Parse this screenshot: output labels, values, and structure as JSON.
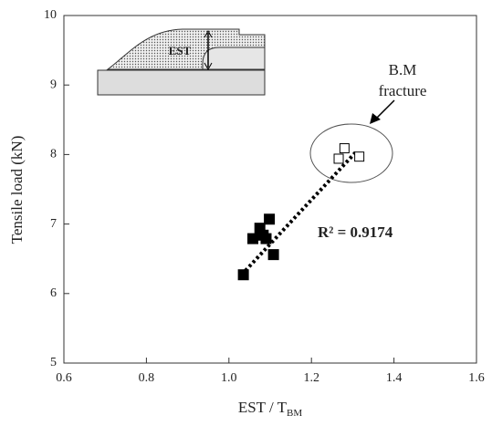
{
  "chart_data": {
    "type": "scatter",
    "x_label": {
      "main": "EST / T",
      "sub": "BM"
    },
    "y_label": "Tensile load (kN)",
    "xlim": [
      0.6,
      1.6
    ],
    "xticks": [
      {
        "value": 0.6,
        "label": "0.6"
      },
      {
        "value": 0.8,
        "label": "0.8"
      },
      {
        "value": 1.0,
        "label": "1.0"
      },
      {
        "value": 1.2,
        "label": "1.2"
      },
      {
        "value": 1.4,
        "label": "1.4"
      },
      {
        "value": 1.6,
        "label": "1.6"
      }
    ],
    "ylim": [
      5,
      10
    ],
    "yticks": [
      5,
      6,
      7,
      8,
      9,
      10
    ],
    "series": [
      {
        "color": "#000000",
        "filled": true,
        "x": [
          1.035,
          1.058,
          1.075,
          1.083,
          1.09,
          1.098,
          1.108
        ],
        "y": [
          6.27,
          6.79,
          6.94,
          6.84,
          6.79,
          7.07,
          6.56
        ]
      },
      {
        "color": "#000000",
        "filled": false,
        "x": [
          1.266,
          1.28,
          1.316
        ],
        "y": [
          7.94,
          8.09,
          7.97
        ]
      }
    ],
    "trendline": {
      "x": [
        1.04,
        1.31
      ],
      "y": [
        6.33,
        8.05
      ]
    },
    "annotations": {
      "fracture_line1": "B.M",
      "fracture_line2": "fracture",
      "r_squared": "R² = 0.9174",
      "inset_label": "EST"
    }
  }
}
